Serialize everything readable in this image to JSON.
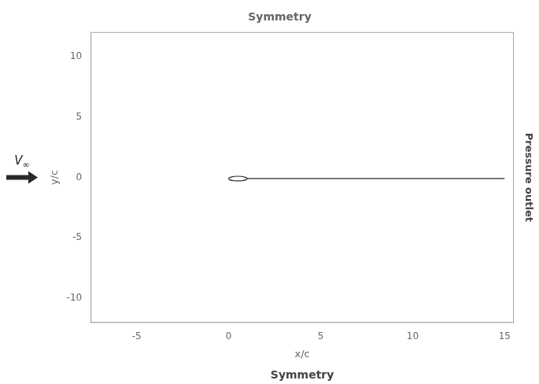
{
  "chart_data": {
    "type": "diagram",
    "title": "Symmetry",
    "xlabel": "x/c",
    "ylabel": "y/c",
    "xlim": [
      -7.5,
      15.5
    ],
    "ylim": [
      -12,
      12
    ],
    "xticks": [
      -5,
      0,
      5,
      10,
      15
    ],
    "yticks": [
      -10,
      -5,
      0,
      5,
      10
    ],
    "grid": false,
    "color": "#2a2a2a",
    "ellipse": {
      "center_x": 0.5,
      "center_y": -0.1,
      "width": 1.0,
      "height": 0.38
    },
    "line": {
      "x": [
        1.0,
        15.0
      ],
      "values": [
        -0.1,
        -0.1
      ]
    },
    "annotations": [
      {
        "text": "Symmetry",
        "side": "bottom"
      },
      {
        "text": "Pressure outlet",
        "side": "right"
      },
      {
        "text": "V∞",
        "side": "left"
      }
    ]
  }
}
